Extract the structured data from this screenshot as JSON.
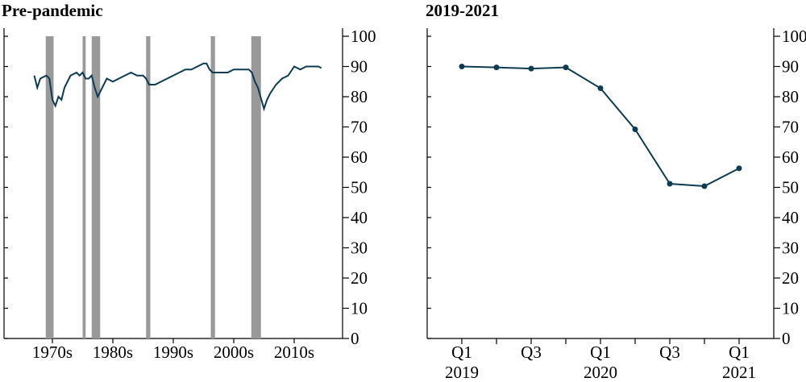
{
  "chart_data": [
    {
      "type": "line",
      "title": "Pre-pandemic",
      "x": [
        1972,
        1972.5,
        1973,
        1974,
        1974.5,
        1975,
        1975.5,
        1976,
        1976.5,
        1977,
        1978,
        1979,
        1979.5,
        1980,
        1980.5,
        1981,
        1981.5,
        1982,
        1982.5,
        1983,
        1984,
        1985,
        1986,
        1987,
        1988,
        1989,
        1990,
        1990.5,
        1991,
        1992,
        1993,
        1994,
        1995,
        1996,
        1997,
        1998,
        1999,
        2000,
        2000.5,
        2001,
        2001.5,
        2002,
        2003,
        2004,
        2005,
        2006,
        2007,
        2007.5,
        2008,
        2008.5,
        2009,
        2010,
        2010.5,
        2011,
        2012,
        2013,
        2014,
        2015,
        2016,
        2017,
        2018,
        2019,
        2019.5
      ],
      "series": [
        {
          "color": "#0d3b52",
          "values": [
            87,
            83,
            86,
            87,
            86,
            79,
            77,
            80,
            79,
            83,
            87,
            88,
            87,
            88,
            86,
            86,
            87,
            83,
            80,
            82,
            86,
            85,
            86,
            87,
            88,
            87,
            87,
            86,
            84,
            84,
            85,
            86,
            87,
            88,
            89,
            89,
            90,
            91,
            91,
            89,
            88,
            88,
            88,
            88,
            89,
            89,
            89,
            89,
            88,
            85,
            83,
            76,
            79,
            81,
            84,
            86,
            87,
            90,
            89,
            90,
            90,
            90,
            89.5
          ]
        }
      ],
      "recessions": [
        [
          1973.9,
          1975.2
        ],
        [
          1980.0,
          1980.5
        ],
        [
          1981.5,
          1982.9
        ],
        [
          1990.5,
          1991.2
        ],
        [
          2001.2,
          2001.9
        ],
        [
          2007.9,
          2009.5
        ]
      ],
      "recession_color": "#999999",
      "xlim": [
        1967,
        2023
      ],
      "xticks": [
        {
          "value": 1975,
          "label": "1970s"
        },
        {
          "value": 1985,
          "label": "1980s"
        },
        {
          "value": 1995,
          "label": "1990s"
        },
        {
          "value": 2005,
          "label": "2000s"
        },
        {
          "value": 2015,
          "label": "2010s"
        }
      ],
      "ylim": [
        0,
        100
      ],
      "yticks": [
        0,
        10,
        20,
        30,
        40,
        50,
        60,
        70,
        80,
        90,
        100
      ]
    },
    {
      "type": "line-markers",
      "title": "2019-2021",
      "categories": [
        "Q1\n2019",
        null,
        "Q3",
        null,
        "Q1\n2020",
        null,
        "Q3",
        null,
        "Q1\n2021"
      ],
      "series": [
        {
          "color": "#0d3b52",
          "values": [
            90,
            89.7,
            89.3,
            89.7,
            82.8,
            69.2,
            51.2,
            50.4,
            56.3
          ]
        }
      ],
      "ylim": [
        0,
        100
      ],
      "yticks": [
        0,
        10,
        20,
        30,
        40,
        50,
        60,
        70,
        80,
        90,
        100
      ]
    }
  ]
}
